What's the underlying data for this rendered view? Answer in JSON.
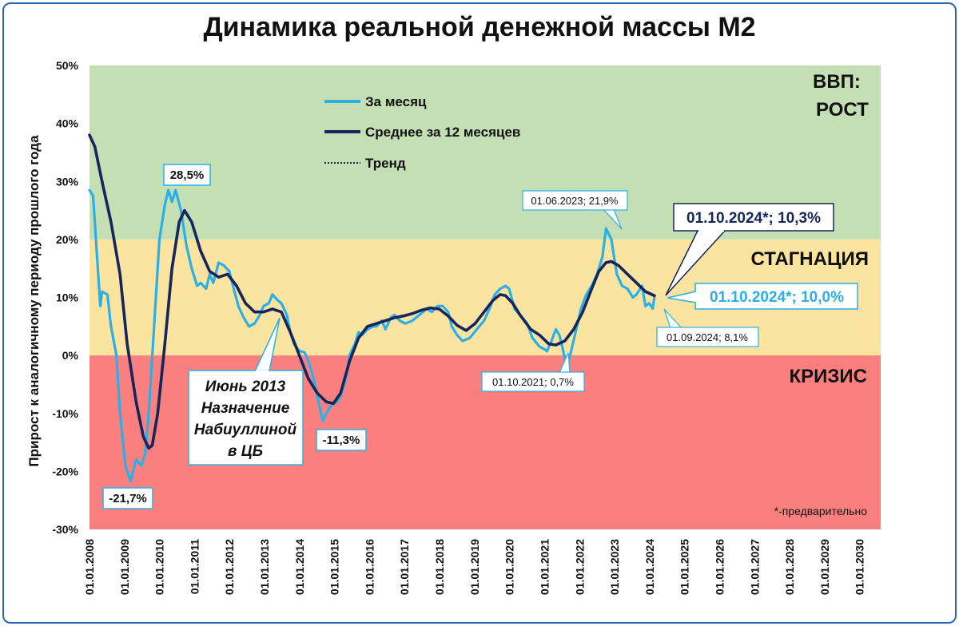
{
  "chart_data": {
    "type": "line",
    "title": "Динамика реальной денежной массы М2",
    "ylabel": "Прирост к аналогичному периоду прошлого года",
    "xlabel": "",
    "ylim": [
      -30,
      50
    ],
    "y_ticks": [
      "50%",
      "40%",
      "30%",
      "20%",
      "10%",
      "0%",
      "-10%",
      "-20%",
      "-30%"
    ],
    "x_ticks": [
      "01.01.2008",
      "01.01.2009",
      "01.01.2010",
      "01.01.2011",
      "01.01.2012",
      "01.01.2013",
      "01.01.2014",
      "01.01.2015",
      "01.01.2016",
      "01.01.2017",
      "01.01.2018",
      "01.01.2019",
      "01.01.2020",
      "01.01.2021",
      "01.01.2022",
      "01.01.2023",
      "01.01.2024",
      "01.01.2025",
      "01.01.2026",
      "01.01.2027",
      "01.01.2028",
      "01.01.2029",
      "01.01.2030"
    ],
    "zones": [
      {
        "name": "ВВП: РОСТ",
        "line1": "ВВП:",
        "line2": "РОСТ",
        "from": 20,
        "to": 50,
        "color": "#c4dfb4"
      },
      {
        "name": "СТАГНАЦИЯ",
        "from": 0,
        "to": 20,
        "color": "#fbe3a0"
      },
      {
        "name": "КРИЗИС",
        "from": -30,
        "to": 0,
        "color": "#fa8080"
      }
    ],
    "legend": [
      {
        "label": "За месяц",
        "color": "#2ab0e6",
        "style": "solid"
      },
      {
        "label": "Среднее за 12 месяцев",
        "color": "#16255a",
        "style": "solid"
      },
      {
        "label": "Тренд",
        "color": "#16255a",
        "style": "dotted"
      }
    ],
    "series": [
      {
        "name": "За месяц",
        "color": "#2ab0e6",
        "points": [
          [
            2008.0,
            28.5
          ],
          [
            2008.1,
            27.5
          ],
          [
            2008.2,
            18.0
          ],
          [
            2008.3,
            8.5
          ],
          [
            2008.35,
            11.0
          ],
          [
            2008.5,
            10.5
          ],
          [
            2008.6,
            5.0
          ],
          [
            2008.75,
            0.0
          ],
          [
            2008.85,
            -10.0
          ],
          [
            2009.0,
            -19.0
          ],
          [
            2009.15,
            -21.7
          ],
          [
            2009.3,
            -18.0
          ],
          [
            2009.45,
            -19.0
          ],
          [
            2009.55,
            -17.0
          ],
          [
            2009.65,
            -10.0
          ],
          [
            2009.8,
            5.0
          ],
          [
            2009.95,
            20.0
          ],
          [
            2010.1,
            26.0
          ],
          [
            2010.2,
            28.5
          ],
          [
            2010.3,
            26.5
          ],
          [
            2010.4,
            28.5
          ],
          [
            2010.55,
            25.0
          ],
          [
            2010.7,
            19.0
          ],
          [
            2010.85,
            15.0
          ],
          [
            2011.0,
            12.0
          ],
          [
            2011.1,
            12.5
          ],
          [
            2011.25,
            11.5
          ],
          [
            2011.35,
            14.0
          ],
          [
            2011.45,
            12.5
          ],
          [
            2011.6,
            16.0
          ],
          [
            2011.75,
            15.5
          ],
          [
            2011.9,
            14.5
          ],
          [
            2012.0,
            12.0
          ],
          [
            2012.15,
            8.5
          ],
          [
            2012.3,
            6.5
          ],
          [
            2012.45,
            5.0
          ],
          [
            2012.6,
            5.5
          ],
          [
            2012.75,
            7.0
          ],
          [
            2012.85,
            8.5
          ],
          [
            2013.0,
            9.0
          ],
          [
            2013.1,
            10.5
          ],
          [
            2013.25,
            9.5
          ],
          [
            2013.35,
            9.0
          ],
          [
            2013.5,
            7.0
          ],
          [
            2013.6,
            4.0
          ],
          [
            2013.7,
            2.0
          ],
          [
            2013.85,
            0.8
          ],
          [
            2014.0,
            0.5
          ],
          [
            2014.1,
            -1.0
          ],
          [
            2014.25,
            -4.0
          ],
          [
            2014.35,
            -7.0
          ],
          [
            2014.5,
            -11.3
          ],
          [
            2014.6,
            -10.0
          ],
          [
            2014.75,
            -8.5
          ],
          [
            2014.9,
            -8.0
          ],
          [
            2015.0,
            -7.0
          ],
          [
            2015.15,
            -4.0
          ],
          [
            2015.25,
            0.0
          ],
          [
            2015.4,
            2.0
          ],
          [
            2015.5,
            4.0
          ],
          [
            2015.6,
            3.5
          ],
          [
            2015.75,
            4.5
          ],
          [
            2015.9,
            5.0
          ],
          [
            2016.0,
            5.0
          ],
          [
            2016.15,
            6.0
          ],
          [
            2016.25,
            4.5
          ],
          [
            2016.4,
            6.5
          ],
          [
            2016.5,
            7.0
          ],
          [
            2016.65,
            6.0
          ],
          [
            2016.8,
            5.5
          ],
          [
            2017.0,
            6.0
          ],
          [
            2017.2,
            7.0
          ],
          [
            2017.4,
            8.0
          ],
          [
            2017.55,
            7.5
          ],
          [
            2017.7,
            8.5
          ],
          [
            2017.85,
            8.5
          ],
          [
            2018.0,
            7.5
          ],
          [
            2018.1,
            5.0
          ],
          [
            2018.25,
            3.5
          ],
          [
            2018.4,
            2.5
          ],
          [
            2018.6,
            3.0
          ],
          [
            2018.8,
            4.5
          ],
          [
            2019.0,
            6.0
          ],
          [
            2019.15,
            8.0
          ],
          [
            2019.3,
            10.5
          ],
          [
            2019.45,
            11.5
          ],
          [
            2019.6,
            12.0
          ],
          [
            2019.7,
            11.5
          ],
          [
            2019.85,
            8.0
          ],
          [
            2020.0,
            7.0
          ],
          [
            2020.2,
            5.5
          ],
          [
            2020.35,
            3.0
          ],
          [
            2020.55,
            1.5
          ],
          [
            2020.7,
            1.0
          ],
          [
            2020.75,
            0.7
          ],
          [
            2020.85,
            2.0
          ],
          [
            2021.0,
            4.5
          ],
          [
            2021.1,
            3.5
          ],
          [
            2021.2,
            1.0
          ],
          [
            2021.3,
            -2.0
          ],
          [
            2021.4,
            0.0
          ],
          [
            2021.55,
            4.0
          ],
          [
            2021.7,
            8.0
          ],
          [
            2021.85,
            10.5
          ],
          [
            2022.0,
            12.0
          ],
          [
            2022.15,
            14.0
          ],
          [
            2022.3,
            17.0
          ],
          [
            2022.4,
            21.9
          ],
          [
            2022.55,
            20.0
          ],
          [
            2022.7,
            14.0
          ],
          [
            2022.85,
            12.0
          ],
          [
            2023.0,
            11.5
          ],
          [
            2023.15,
            10.0
          ],
          [
            2023.25,
            10.5
          ],
          [
            2023.4,
            12.0
          ],
          [
            2023.5,
            8.5
          ],
          [
            2023.6,
            9.0
          ],
          [
            2023.7,
            8.1
          ],
          [
            2023.75,
            10.0
          ]
        ]
      },
      {
        "name": "Среднее за 12 месяцев",
        "color": "#16255a",
        "points": [
          [
            2008.0,
            38.0
          ],
          [
            2008.15,
            36.0
          ],
          [
            2008.35,
            30.0
          ],
          [
            2008.6,
            23.0
          ],
          [
            2008.85,
            14.0
          ],
          [
            2009.05,
            2.0
          ],
          [
            2009.3,
            -8.0
          ],
          [
            2009.5,
            -14.0
          ],
          [
            2009.65,
            -16.0
          ],
          [
            2009.75,
            -15.5
          ],
          [
            2009.9,
            -10.0
          ],
          [
            2010.1,
            2.0
          ],
          [
            2010.3,
            15.0
          ],
          [
            2010.5,
            23.0
          ],
          [
            2010.65,
            25.0
          ],
          [
            2010.85,
            23.0
          ],
          [
            2011.1,
            18.0
          ],
          [
            2011.35,
            14.5
          ],
          [
            2011.6,
            13.5
          ],
          [
            2011.85,
            14.0
          ],
          [
            2012.1,
            12.0
          ],
          [
            2012.35,
            9.0
          ],
          [
            2012.6,
            7.5
          ],
          [
            2012.85,
            7.5
          ],
          [
            2013.1,
            8.0
          ],
          [
            2013.35,
            7.5
          ],
          [
            2013.6,
            4.0
          ],
          [
            2013.85,
            0.0
          ],
          [
            2014.1,
            -4.0
          ],
          [
            2014.35,
            -6.5
          ],
          [
            2014.6,
            -8.0
          ],
          [
            2014.8,
            -8.3
          ],
          [
            2015.0,
            -6.5
          ],
          [
            2015.25,
            -1.0
          ],
          [
            2015.5,
            3.0
          ],
          [
            2015.75,
            5.0
          ],
          [
            2016.0,
            5.5
          ],
          [
            2016.25,
            6.0
          ],
          [
            2016.5,
            6.5
          ],
          [
            2016.75,
            6.8
          ],
          [
            2017.0,
            7.2
          ],
          [
            2017.25,
            7.8
          ],
          [
            2017.5,
            8.2
          ],
          [
            2017.75,
            8.0
          ],
          [
            2018.0,
            6.8
          ],
          [
            2018.25,
            5.2
          ],
          [
            2018.5,
            4.3
          ],
          [
            2018.75,
            5.5
          ],
          [
            2019.0,
            7.5
          ],
          [
            2019.25,
            9.5
          ],
          [
            2019.45,
            10.5
          ],
          [
            2019.6,
            10.3
          ],
          [
            2019.8,
            9.0
          ],
          [
            2020.0,
            7.0
          ],
          [
            2020.3,
            4.5
          ],
          [
            2020.55,
            3.5
          ],
          [
            2020.8,
            2.0
          ],
          [
            2021.0,
            1.8
          ],
          [
            2021.25,
            2.5
          ],
          [
            2021.5,
            4.5
          ],
          [
            2021.75,
            7.5
          ],
          [
            2022.0,
            11.5
          ],
          [
            2022.2,
            14.5
          ],
          [
            2022.4,
            16.0
          ],
          [
            2022.55,
            16.2
          ],
          [
            2022.75,
            15.5
          ],
          [
            2023.0,
            14.0
          ],
          [
            2023.25,
            12.5
          ],
          [
            2023.5,
            11.0
          ],
          [
            2023.75,
            10.3
          ]
        ]
      }
    ],
    "annotations": {
      "peak_2010": "28,5%",
      "trough_2009": "-21,7%",
      "trough_2015": "-11,3%",
      "nabiullina_line1": "Июнь 2013",
      "nabiullina_line2": "Назначение",
      "nabiullina_line3": "Набиуллиной",
      "nabiullina_line4": "в ЦБ",
      "jun_2023": "01.06.2023; 21,9%",
      "oct_2021": "01.10.2021; 0,7%",
      "sep_2024": "01.09.2024; 8,1%",
      "oct_2024_avg": "01.10.2024*; 10,3%",
      "oct_2024_month": "01.10.2024*; 10,0%",
      "footnote": "*-предварительно"
    }
  }
}
